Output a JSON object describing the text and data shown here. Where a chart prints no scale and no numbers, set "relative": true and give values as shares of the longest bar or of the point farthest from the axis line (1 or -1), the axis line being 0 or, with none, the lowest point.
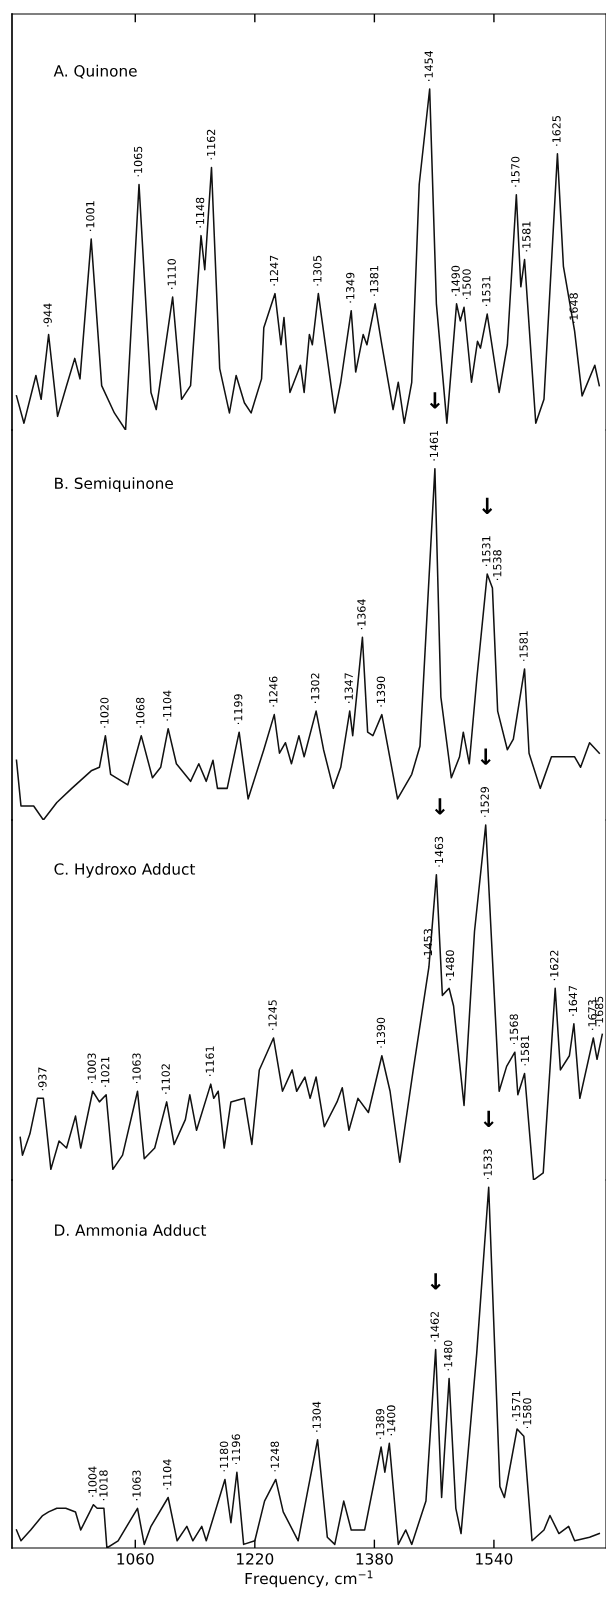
{
  "chart_data": [
    {
      "type": "line",
      "title": "A. Quinone",
      "relative": true,
      "color": "#111111",
      "xlim": [
        895,
        1690
      ],
      "xticks": [
        1060,
        1220,
        1380,
        1540
      ],
      "tick_labels": false,
      "x": [
        901,
        911,
        927,
        934,
        944,
        956,
        968,
        979,
        986,
        1001,
        1015,
        1032,
        1047,
        1065,
        1081,
        1088,
        1110,
        1122,
        1134,
        1148,
        1153,
        1162,
        1173,
        1186,
        1195,
        1206,
        1215,
        1229,
        1232,
        1247,
        1255,
        1259,
        1267,
        1281,
        1286,
        1293,
        1297,
        1305,
        1327,
        1335,
        1349,
        1355,
        1365,
        1370,
        1381,
        1390,
        1405,
        1412,
        1420,
        1430,
        1440,
        1454,
        1463,
        1477,
        1490,
        1495,
        1500,
        1510,
        1518,
        1522,
        1531,
        1547,
        1558,
        1570,
        1576,
        1581,
        1596,
        1607,
        1625,
        1633,
        1648,
        1658,
        1675,
        1681
      ],
      "values": [
        0.1,
        0.02,
        0.16,
        0.09,
        0.28,
        0.04,
        0.13,
        0.21,
        0.15,
        0.56,
        0.13,
        0.05,
        0.0,
        0.72,
        0.11,
        0.06,
        0.39,
        0.09,
        0.13,
        0.57,
        0.47,
        0.77,
        0.18,
        0.05,
        0.16,
        0.08,
        0.05,
        0.15,
        0.3,
        0.4,
        0.25,
        0.33,
        0.11,
        0.19,
        0.11,
        0.28,
        0.25,
        0.4,
        0.05,
        0.14,
        0.35,
        0.17,
        0.28,
        0.25,
        0.37,
        0.25,
        0.06,
        0.14,
        0.02,
        0.14,
        0.72,
        1.0,
        0.37,
        0.02,
        0.37,
        0.32,
        0.36,
        0.14,
        0.26,
        0.24,
        0.34,
        0.11,
        0.25,
        0.69,
        0.42,
        0.5,
        0.02,
        0.09,
        0.81,
        0.48,
        0.29,
        0.1,
        0.19,
        0.13
      ],
      "annotations": [
        {
          "text": "·944",
          "x": 944,
          "y": 0.28
        },
        {
          "text": "·1001",
          "x": 1001,
          "y": 0.56
        },
        {
          "text": "·1065",
          "x": 1065,
          "y": 0.72
        },
        {
          "text": "·1110",
          "x": 1110,
          "y": 0.39
        },
        {
          "text": "·1148",
          "x": 1148,
          "y": 0.57
        },
        {
          "text": "·1162",
          "x": 1162,
          "y": 0.77
        },
        {
          "text": "·1247",
          "x": 1247,
          "y": 0.4
        },
        {
          "text": "·1305",
          "x": 1305,
          "y": 0.4
        },
        {
          "text": "·1349",
          "x": 1349,
          "y": 0.35
        },
        {
          "text": "·1381",
          "x": 1381,
          "y": 0.37
        },
        {
          "text": "·1454",
          "x": 1454,
          "y": 1.0
        },
        {
          "text": "·1490",
          "x": 1490,
          "y": 0.37
        },
        {
          "text": "·1500",
          "x": 1500,
          "y": 0.36
        },
        {
          "text": "·1531",
          "x": 1531,
          "y": 0.34
        },
        {
          "text": "·1570",
          "x": 1570,
          "y": 0.69
        },
        {
          "text": "·1581",
          "x": 1581,
          "y": 0.5
        },
        {
          "text": "·1625",
          "x": 1625,
          "y": 0.81
        },
        {
          "text": "·1648",
          "x": 1648,
          "y": 0.29
        }
      ]
    },
    {
      "type": "line",
      "title": "B. Semiquinone",
      "relative": true,
      "color": "#111111",
      "xlim": [
        895,
        1690
      ],
      "xticks": [
        1060,
        1220,
        1380,
        1540
      ],
      "tick_labels": false,
      "x": [
        901,
        907,
        924,
        937,
        955,
        975,
        1001,
        1012,
        1020,
        1027,
        1050,
        1068,
        1083,
        1094,
        1104,
        1115,
        1134,
        1145,
        1155,
        1164,
        1170,
        1183,
        1199,
        1211,
        1232,
        1246,
        1253,
        1261,
        1269,
        1279,
        1286,
        1302,
        1312,
        1325,
        1335,
        1347,
        1351,
        1364,
        1371,
        1378,
        1390,
        1411,
        1430,
        1441,
        1461,
        1469,
        1483,
        1494,
        1499,
        1507,
        1517,
        1531,
        1538,
        1545,
        1558,
        1566,
        1581,
        1587,
        1602,
        1617,
        1648,
        1656,
        1668,
        1681
      ],
      "values": [
        0.17,
        0.04,
        0.04,
        0.0,
        0.05,
        0.09,
        0.14,
        0.15,
        0.24,
        0.13,
        0.1,
        0.24,
        0.12,
        0.15,
        0.26,
        0.16,
        0.11,
        0.16,
        0.11,
        0.17,
        0.09,
        0.09,
        0.25,
        0.06,
        0.2,
        0.3,
        0.19,
        0.22,
        0.16,
        0.24,
        0.18,
        0.31,
        0.2,
        0.09,
        0.15,
        0.31,
        0.24,
        0.52,
        0.25,
        0.24,
        0.3,
        0.06,
        0.13,
        0.21,
        1.0,
        0.35,
        0.12,
        0.18,
        0.25,
        0.16,
        0.4,
        0.7,
        0.66,
        0.31,
        0.2,
        0.23,
        0.43,
        0.19,
        0.09,
        0.18,
        0.18,
        0.15,
        0.22,
        0.19
      ],
      "annotations": [
        {
          "text": "·1020",
          "x": 1020,
          "y": 0.24
        },
        {
          "text": "·1068",
          "x": 1068,
          "y": 0.24
        },
        {
          "text": "·1104",
          "x": 1104,
          "y": 0.26
        },
        {
          "text": "·1199",
          "x": 1199,
          "y": 0.25
        },
        {
          "text": "·1246",
          "x": 1246,
          "y": 0.3
        },
        {
          "text": "·1302",
          "x": 1302,
          "y": 0.31
        },
        {
          "text": "·1347",
          "x": 1347,
          "y": 0.31
        },
        {
          "text": "·1364",
          "x": 1364,
          "y": 0.52
        },
        {
          "text": "·1390",
          "x": 1390,
          "y": 0.3
        },
        {
          "text": "·1461",
          "x": 1461,
          "y": 1.0
        },
        {
          "text": "·1531",
          "x": 1531,
          "y": 0.7
        },
        {
          "text": "·1538",
          "x": 1538,
          "y": 0.66
        },
        {
          "text": "·1581",
          "x": 1581,
          "y": 0.43
        },
        {
          "text": "↓",
          "x": 1461,
          "y": 1.0
        },
        {
          "text": "↓",
          "x": 1531,
          "y": 0.7
        }
      ]
    },
    {
      "type": "line",
      "title": "C. Hydroxo Adduct",
      "relative": true,
      "color": "#111111",
      "xlim": [
        895,
        1690
      ],
      "xticks": [
        1060,
        1220,
        1380,
        1540
      ],
      "tick_labels": false,
      "x": [
        906,
        909,
        919,
        929,
        937,
        947,
        958,
        968,
        980,
        987,
        1003,
        1012,
        1021,
        1030,
        1043,
        1063,
        1072,
        1086,
        1102,
        1112,
        1127,
        1133,
        1142,
        1161,
        1165,
        1171,
        1179,
        1188,
        1206,
        1216,
        1226,
        1245,
        1257,
        1270,
        1276,
        1287,
        1294,
        1302,
        1313,
        1330,
        1337,
        1346,
        1358,
        1372,
        1390,
        1401,
        1414,
        1432,
        1453,
        1463,
        1471,
        1480,
        1486,
        1500,
        1514,
        1529,
        1547,
        1557,
        1568,
        1572,
        1581,
        1593,
        1606,
        1622,
        1629,
        1641,
        1647,
        1655,
        1673,
        1678,
        1685
      ],
      "values": [
        0.12,
        0.07,
        0.13,
        0.23,
        0.23,
        0.03,
        0.11,
        0.09,
        0.18,
        0.09,
        0.25,
        0.22,
        0.24,
        0.03,
        0.07,
        0.25,
        0.06,
        0.09,
        0.22,
        0.1,
        0.17,
        0.24,
        0.14,
        0.27,
        0.23,
        0.25,
        0.09,
        0.22,
        0.23,
        0.1,
        0.31,
        0.4,
        0.25,
        0.31,
        0.25,
        0.29,
        0.23,
        0.29,
        0.15,
        0.22,
        0.26,
        0.14,
        0.23,
        0.19,
        0.35,
        0.25,
        0.05,
        0.31,
        0.6,
        0.86,
        0.52,
        0.54,
        0.49,
        0.21,
        0.7,
        1.0,
        0.25,
        0.32,
        0.36,
        0.24,
        0.3,
        0.0,
        0.02,
        0.54,
        0.31,
        0.35,
        0.44,
        0.23,
        0.4,
        0.34,
        0.41
      ],
      "annotations": [
        {
          "text": "·937",
          "x": 937,
          "y": 0.23
        },
        {
          "text": "·1003",
          "x": 1003,
          "y": 0.25
        },
        {
          "text": "·1021",
          "x": 1021,
          "y": 0.24
        },
        {
          "text": "·1063",
          "x": 1063,
          "y": 0.25
        },
        {
          "text": "·1102",
          "x": 1102,
          "y": 0.22
        },
        {
          "text": "·1161",
          "x": 1161,
          "y": 0.27
        },
        {
          "text": "·1245",
          "x": 1245,
          "y": 0.4
        },
        {
          "text": "·1390",
          "x": 1390,
          "y": 0.35
        },
        {
          "text": "·1453",
          "x": 1453,
          "y": 0.6
        },
        {
          "text": "·1463",
          "x": 1463,
          "y": 0.86
        },
        {
          "text": "·1480",
          "x": 1480,
          "y": 0.54
        },
        {
          "text": "·1529",
          "x": 1529,
          "y": 1.0
        },
        {
          "text": "·1568",
          "x": 1568,
          "y": 0.36
        },
        {
          "text": "·1581",
          "x": 1581,
          "y": 0.3
        },
        {
          "text": "·1622",
          "x": 1622,
          "y": 0.54
        },
        {
          "text": "·1647",
          "x": 1647,
          "y": 0.44
        },
        {
          "text": "·1673",
          "x": 1673,
          "y": 0.4
        },
        {
          "text": "·1685",
          "x": 1685,
          "y": 0.41
        },
        {
          "text": "↓",
          "x": 1463,
          "y": 0.86
        },
        {
          "text": "↓",
          "x": 1529,
          "y": 1.0
        }
      ]
    },
    {
      "type": "line",
      "title": "D. Ammonia Adduct",
      "relative": true,
      "color": "#111111",
      "xlim": [
        895,
        1690
      ],
      "xticks": [
        1060,
        1220,
        1380,
        1540
      ],
      "tick_labels": "x",
      "xlabel": "Frequency, cm$^{−1}$",
      "x": [
        901,
        907,
        920,
        936,
        944,
        955,
        967,
        980,
        987,
        1004,
        1009,
        1018,
        1022,
        1037,
        1063,
        1072,
        1081,
        1104,
        1116,
        1129,
        1137,
        1149,
        1155,
        1180,
        1188,
        1196,
        1205,
        1220,
        1233,
        1248,
        1258,
        1278,
        1290,
        1304,
        1317,
        1327,
        1339,
        1349,
        1367,
        1389,
        1394,
        1400,
        1412,
        1422,
        1430,
        1449,
        1462,
        1470,
        1480,
        1489,
        1496,
        1517,
        1533,
        1548,
        1554,
        1571,
        1580,
        1591,
        1607,
        1615,
        1627,
        1640,
        1648,
        1668,
        1681
      ],
      "values": [
        0.05,
        0.02,
        0.05,
        0.09,
        0.1,
        0.11,
        0.11,
        0.1,
        0.05,
        0.12,
        0.11,
        0.11,
        0.0,
        0.02,
        0.11,
        0.01,
        0.06,
        0.14,
        0.02,
        0.06,
        0.02,
        0.06,
        0.02,
        0.19,
        0.07,
        0.21,
        0.01,
        0.02,
        0.13,
        0.19,
        0.1,
        0.02,
        0.15,
        0.3,
        0.03,
        0.01,
        0.13,
        0.05,
        0.05,
        0.28,
        0.21,
        0.29,
        0.01,
        0.05,
        0.01,
        0.13,
        0.55,
        0.14,
        0.47,
        0.11,
        0.04,
        0.54,
        1.0,
        0.17,
        0.14,
        0.33,
        0.31,
        0.02,
        0.05,
        0.09,
        0.04,
        0.06,
        0.02,
        0.03,
        0.04
      ],
      "annotations": [
        {
          "text": "·1004",
          "x": 1004,
          "y": 0.12
        },
        {
          "text": "·1018",
          "x": 1018,
          "y": 0.11
        },
        {
          "text": "·1063",
          "x": 1063,
          "y": 0.11
        },
        {
          "text": "·1104",
          "x": 1104,
          "y": 0.14
        },
        {
          "text": "·1180",
          "x": 1180,
          "y": 0.19
        },
        {
          "text": "·1196",
          "x": 1196,
          "y": 0.21
        },
        {
          "text": "·1248",
          "x": 1248,
          "y": 0.19
        },
        {
          "text": "·1304",
          "x": 1304,
          "y": 0.3
        },
        {
          "text": "·1389",
          "x": 1389,
          "y": 0.28
        },
        {
          "text": "·1400",
          "x": 1400,
          "y": 0.29
        },
        {
          "text": "·1462",
          "x": 1462,
          "y": 0.55
        },
        {
          "text": "·1480",
          "x": 1480,
          "y": 0.47
        },
        {
          "text": "·1533",
          "x": 1533,
          "y": 1.0
        },
        {
          "text": "·1571",
          "x": 1571,
          "y": 0.33
        },
        {
          "text": "·1580",
          "x": 1580,
          "y": 0.31
        },
        {
          "text": "↓",
          "x": 1462,
          "y": 0.55
        },
        {
          "text": "↓",
          "x": 1533,
          "y": 1.0
        }
      ]
    }
  ]
}
